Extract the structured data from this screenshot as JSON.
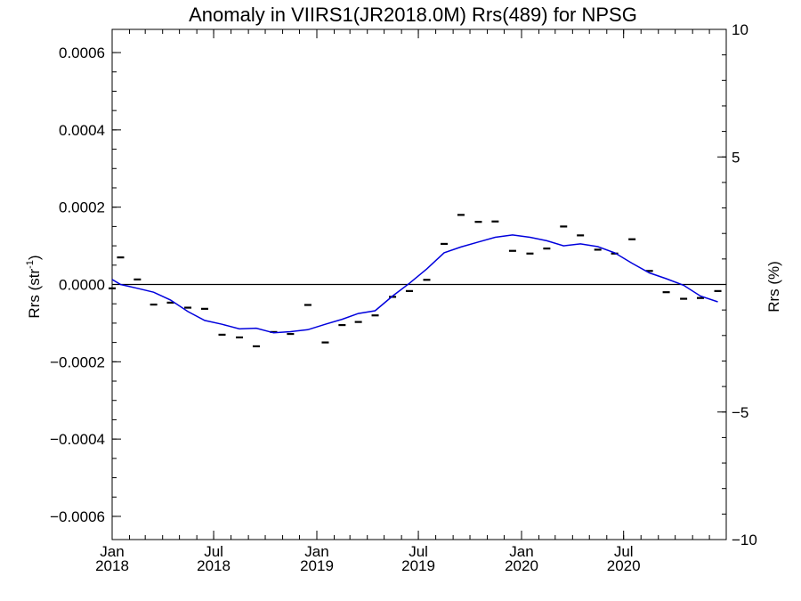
{
  "chart_data": {
    "type": "line",
    "title": "Anomaly in VIIRS1(JR2018.0M) Rrs(489) for NPSG",
    "ylabel_left": "Rrs (str",
    "ylabel_left_sup": "-1",
    "ylabel_left_close": ")",
    "ylabel_right": "Rrs (%)",
    "xlim": [
      "2018-01-01",
      "2020-12-31"
    ],
    "ylim_left": [
      -0.00066,
      0.00066
    ],
    "ylim_right": [
      -10,
      10
    ],
    "grid": false,
    "zero_line": true,
    "x_ticks": [
      {
        "date": "2018-01-01",
        "line1": "Jan",
        "line2": "2018"
      },
      {
        "date": "2018-07-01",
        "line1": "Jul",
        "line2": "2018"
      },
      {
        "date": "2019-01-01",
        "line1": "Jan",
        "line2": "2019"
      },
      {
        "date": "2019-07-01",
        "line1": "Jul",
        "line2": "2019"
      },
      {
        "date": "2020-01-01",
        "line1": "Jan",
        "line2": "2020"
      },
      {
        "date": "2020-07-01",
        "line1": "Jul",
        "line2": "2020"
      }
    ],
    "y_ticks_left": [
      {
        "value": 0.0006,
        "label": "0.0006"
      },
      {
        "value": 0.0004,
        "label": "0.0004"
      },
      {
        "value": 0.0002,
        "label": "0.0002"
      },
      {
        "value": 0.0,
        "label": "0.0000"
      },
      {
        "value": -0.0002,
        "label": "−0.0002"
      },
      {
        "value": -0.0004,
        "label": "−0.0004"
      },
      {
        "value": -0.0006,
        "label": "−0.0006"
      }
    ],
    "y_ticks_right": [
      {
        "value": 10,
        "label": "10"
      },
      {
        "value": 5,
        "label": "5"
      },
      {
        "value": 0,
        "label": ""
      },
      {
        "value": -5,
        "label": "−5"
      },
      {
        "value": -10,
        "label": "−10"
      }
    ],
    "series": [
      {
        "style": "dash-markers",
        "color": "#000000",
        "points": [
          [
            "2018-01-01",
            -1e-05
          ],
          [
            "2018-01-16",
            7e-05
          ],
          [
            "2018-02-15",
            1.3e-05
          ],
          [
            "2018-03-16",
            -5.2e-05
          ],
          [
            "2018-04-15",
            -4.7e-05
          ],
          [
            "2018-05-16",
            -6e-05
          ],
          [
            "2018-06-15",
            -6.3e-05
          ],
          [
            "2018-07-16",
            -0.00013
          ],
          [
            "2018-08-16",
            -0.000137
          ],
          [
            "2018-09-15",
            -0.00016
          ],
          [
            "2018-10-16",
            -0.000123
          ],
          [
            "2018-11-15",
            -0.000128
          ],
          [
            "2018-12-16",
            -5.3e-05
          ],
          [
            "2019-01-16",
            -0.00015
          ],
          [
            "2019-02-15",
            -0.000105
          ],
          [
            "2019-03-16",
            -9.7e-05
          ],
          [
            "2019-04-15",
            -8e-05
          ],
          [
            "2019-05-16",
            -3.2e-05
          ],
          [
            "2019-06-15",
            -1.7e-05
          ],
          [
            "2019-07-16",
            1.2e-05
          ],
          [
            "2019-08-16",
            0.000105
          ],
          [
            "2019-09-15",
            0.00018
          ],
          [
            "2019-10-16",
            0.000162
          ],
          [
            "2019-11-15",
            0.000163
          ],
          [
            "2019-12-16",
            8.7e-05
          ],
          [
            "2020-01-16",
            8e-05
          ],
          [
            "2020-02-15",
            9.3e-05
          ],
          [
            "2020-03-16",
            0.00015
          ],
          [
            "2020-04-15",
            0.000127
          ],
          [
            "2020-05-16",
            9e-05
          ],
          [
            "2020-06-15",
            8e-05
          ],
          [
            "2020-07-16",
            0.000117
          ],
          [
            "2020-08-16",
            3.5e-05
          ],
          [
            "2020-09-15",
            -2e-05
          ],
          [
            "2020-10-16",
            -3.7e-05
          ],
          [
            "2020-11-15",
            -3.5e-05
          ],
          [
            "2020-12-16",
            -1.7e-05
          ]
        ]
      },
      {
        "style": "line",
        "color": "#0000dd",
        "points": [
          [
            "2018-01-01",
            1.3e-05
          ],
          [
            "2018-01-16",
            0.0
          ],
          [
            "2018-02-15",
            -1e-05
          ],
          [
            "2018-03-16",
            -2e-05
          ],
          [
            "2018-04-15",
            -4e-05
          ],
          [
            "2018-05-16",
            -7e-05
          ],
          [
            "2018-06-15",
            -9.3e-05
          ],
          [
            "2018-07-16",
            -0.000103
          ],
          [
            "2018-08-16",
            -0.000115
          ],
          [
            "2018-09-15",
            -0.000113
          ],
          [
            "2018-10-16",
            -0.000125
          ],
          [
            "2018-11-15",
            -0.000122
          ],
          [
            "2018-12-16",
            -0.000117
          ],
          [
            "2019-01-16",
            -0.000103
          ],
          [
            "2019-02-15",
            -9e-05
          ],
          [
            "2019-03-16",
            -7.5e-05
          ],
          [
            "2019-04-15",
            -6.8e-05
          ],
          [
            "2019-05-16",
            -3e-05
          ],
          [
            "2019-06-15",
            3e-06
          ],
          [
            "2019-07-16",
            4e-05
          ],
          [
            "2019-08-16",
            8.2e-05
          ],
          [
            "2019-09-15",
            9.7e-05
          ],
          [
            "2019-10-16",
            0.00011
          ],
          [
            "2019-11-15",
            0.000122
          ],
          [
            "2019-12-16",
            0.000128
          ],
          [
            "2020-01-16",
            0.000122
          ],
          [
            "2020-02-15",
            0.000113
          ],
          [
            "2020-03-16",
            0.0001
          ],
          [
            "2020-04-15",
            0.000105
          ],
          [
            "2020-05-16",
            9.8e-05
          ],
          [
            "2020-06-15",
            8.2e-05
          ],
          [
            "2020-07-16",
            5.5e-05
          ],
          [
            "2020-08-16",
            3e-05
          ],
          [
            "2020-09-15",
            1.5e-05
          ],
          [
            "2020-10-16",
            -2e-06
          ],
          [
            "2020-11-15",
            -3e-05
          ],
          [
            "2020-12-16",
            -4.5e-05
          ]
        ]
      }
    ]
  }
}
